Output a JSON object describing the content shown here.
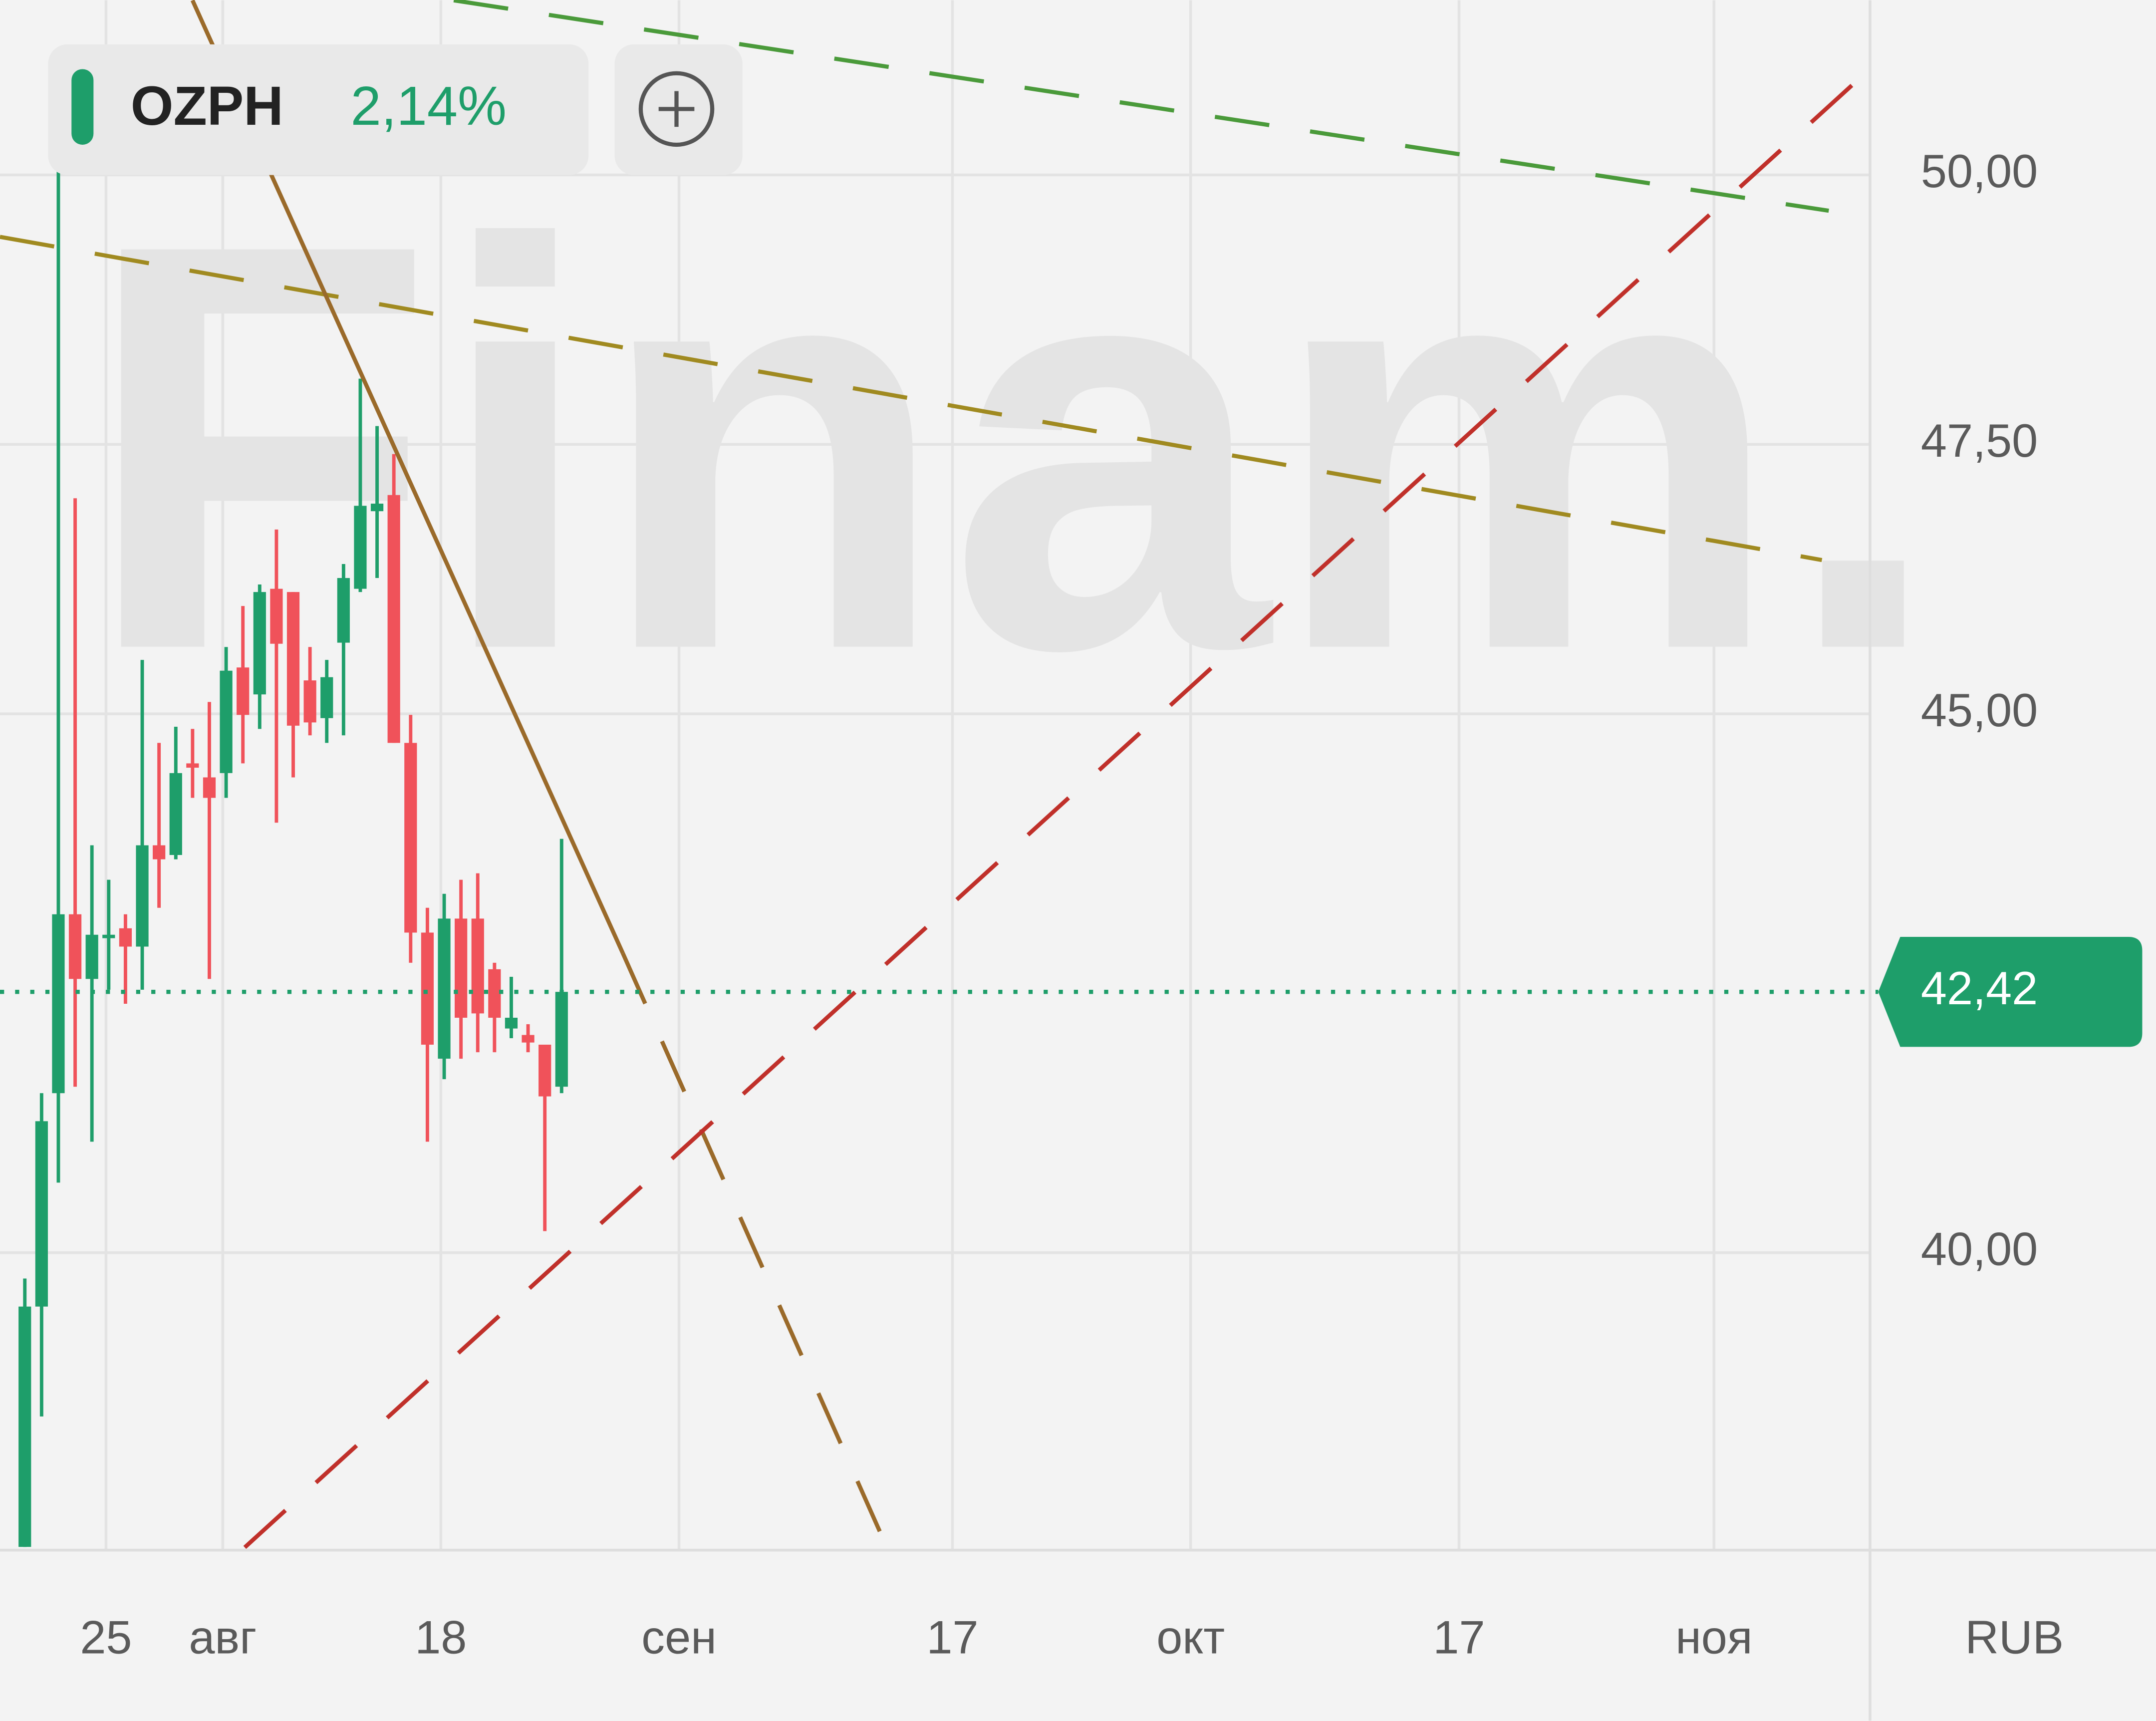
{
  "header": {
    "ticker": "OZPH",
    "change": "2,14%"
  },
  "watermark": "Finam.",
  "chart_data": {
    "type": "candlestick",
    "x": [
      0,
      1,
      2,
      3,
      4,
      5,
      6,
      7,
      8,
      9,
      10,
      11,
      12,
      13,
      14,
      15,
      16,
      17,
      18,
      19,
      20,
      21,
      22,
      23,
      24,
      25,
      26,
      27,
      28,
      29,
      30,
      31,
      32
    ],
    "open": [
      37.27,
      39.5,
      41.48,
      43.14,
      42.54,
      42.93,
      43.01,
      42.84,
      43.78,
      43.69,
      44.54,
      44.41,
      44.45,
      45.43,
      45.18,
      46.16,
      46.13,
      45.31,
      44.96,
      45.66,
      46.16,
      46.88,
      47.03,
      44.73,
      42.97,
      41.8,
      43.1,
      43.1,
      42.63,
      42.08,
      42.02,
      41.93,
      41.54
    ],
    "high": [
      39.76,
      41.48,
      50.09,
      47.0,
      43.78,
      43.46,
      43.14,
      45.5,
      44.73,
      44.88,
      44.86,
      45.11,
      45.62,
      46.0,
      46.2,
      46.71,
      46.13,
      45.62,
      45.5,
      46.39,
      48.11,
      47.67,
      47.41,
      44.99,
      43.2,
      43.33,
      43.46,
      43.52,
      42.69,
      42.56,
      42.12,
      41.93,
      43.84
    ],
    "low": [
      37.27,
      38.48,
      40.65,
      41.54,
      41.03,
      42.44,
      42.31,
      42.44,
      43.2,
      43.65,
      44.22,
      42.54,
      44.22,
      44.54,
      44.86,
      43.99,
      44.41,
      44.8,
      44.73,
      44.8,
      46.13,
      46.26,
      44.73,
      42.69,
      41.03,
      41.61,
      41.8,
      41.86,
      41.86,
      41.99,
      41.86,
      40.2,
      41.48
    ],
    "close": [
      39.5,
      41.22,
      43.14,
      42.54,
      42.95,
      42.95,
      42.84,
      43.78,
      43.65,
      44.45,
      44.5,
      44.22,
      45.4,
      44.99,
      46.13,
      45.65,
      44.89,
      44.92,
      45.34,
      46.26,
      46.93,
      46.95,
      44.73,
      42.97,
      41.93,
      43.1,
      42.18,
      42.22,
      42.18,
      42.18,
      41.95,
      41.45,
      42.42
    ],
    "up_color": "#1e9e6a",
    "down_color": "#f0525a",
    "xlim": [
      -1.48,
      110
    ],
    "xticks": [
      {
        "value": 4.84,
        "label": "25"
      },
      {
        "value": 11.8,
        "label": "авг"
      },
      {
        "value": 24.8,
        "label": "18"
      },
      {
        "value": 39.0,
        "label": "сен"
      },
      {
        "value": 55.3,
        "label": "17"
      },
      {
        "value": 69.5,
        "label": "окт"
      },
      {
        "value": 85.5,
        "label": "17"
      },
      {
        "value": 100.7,
        "label": "ноя"
      }
    ],
    "ylim": [
      37.24,
      51.62
    ],
    "yticks": [
      {
        "value": 40,
        "label": "40,00"
      },
      {
        "value": 45,
        "label": "45,00"
      },
      {
        "value": 47.5,
        "label": "47,50"
      },
      {
        "value": 50,
        "label": "50,00"
      }
    ],
    "last_price": {
      "value": 42.42,
      "label": "42,42"
    },
    "currency": "RUB",
    "grid": true
  }
}
